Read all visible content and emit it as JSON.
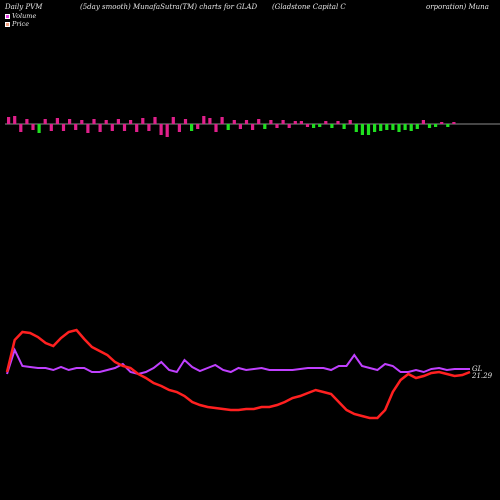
{
  "header": {
    "col1": "Daily PVM",
    "col2": "(5day smooth) MunafaSutra(TM) charts for GLAD",
    "col3": "(Gladstone   Capital C",
    "col4": "orporation) Muna"
  },
  "legend": [
    {
      "label": "Volume",
      "color": "#e040e0"
    },
    {
      "label": "Price",
      "color": "#f0a080"
    }
  ],
  "colors": {
    "up": "#e0208c",
    "down": "#20e020",
    "price": "#ff2020",
    "pvm": "#c040ff",
    "axis": "#bbbbbb"
  },
  "chart_data": {
    "type": "bar+line",
    "volume_bars": [
      {
        "v": 0.35,
        "c": "up"
      },
      {
        "v": 0.4,
        "c": "up"
      },
      {
        "v": -0.4,
        "c": "up"
      },
      {
        "v": 0.25,
        "c": "up"
      },
      {
        "v": -0.3,
        "c": "up"
      },
      {
        "v": -0.45,
        "c": "down"
      },
      {
        "v": 0.25,
        "c": "up"
      },
      {
        "v": -0.35,
        "c": "up"
      },
      {
        "v": 0.3,
        "c": "up"
      },
      {
        "v": -0.35,
        "c": "up"
      },
      {
        "v": 0.25,
        "c": "up"
      },
      {
        "v": -0.3,
        "c": "up"
      },
      {
        "v": 0.2,
        "c": "up"
      },
      {
        "v": -0.45,
        "c": "up"
      },
      {
        "v": 0.25,
        "c": "up"
      },
      {
        "v": -0.4,
        "c": "up"
      },
      {
        "v": 0.2,
        "c": "up"
      },
      {
        "v": -0.35,
        "c": "up"
      },
      {
        "v": 0.25,
        "c": "up"
      },
      {
        "v": -0.35,
        "c": "up"
      },
      {
        "v": 0.2,
        "c": "up"
      },
      {
        "v": -0.4,
        "c": "up"
      },
      {
        "v": 0.3,
        "c": "up"
      },
      {
        "v": -0.35,
        "c": "up"
      },
      {
        "v": 0.35,
        "c": "up"
      },
      {
        "v": -0.55,
        "c": "up"
      },
      {
        "v": -0.65,
        "c": "up"
      },
      {
        "v": 0.35,
        "c": "up"
      },
      {
        "v": -0.4,
        "c": "up"
      },
      {
        "v": 0.25,
        "c": "up"
      },
      {
        "v": -0.35,
        "c": "down"
      },
      {
        "v": -0.25,
        "c": "up"
      },
      {
        "v": 0.4,
        "c": "up"
      },
      {
        "v": 0.3,
        "c": "up"
      },
      {
        "v": -0.4,
        "c": "up"
      },
      {
        "v": 0.35,
        "c": "up"
      },
      {
        "v": -0.3,
        "c": "down"
      },
      {
        "v": 0.2,
        "c": "up"
      },
      {
        "v": -0.25,
        "c": "up"
      },
      {
        "v": 0.2,
        "c": "up"
      },
      {
        "v": -0.3,
        "c": "up"
      },
      {
        "v": 0.25,
        "c": "up"
      },
      {
        "v": -0.25,
        "c": "down"
      },
      {
        "v": 0.2,
        "c": "up"
      },
      {
        "v": -0.2,
        "c": "up"
      },
      {
        "v": 0.2,
        "c": "up"
      },
      {
        "v": -0.2,
        "c": "up"
      },
      {
        "v": 0.15,
        "c": "up"
      },
      {
        "v": 0.15,
        "c": "up"
      },
      {
        "v": -0.15,
        "c": "up"
      },
      {
        "v": -0.2,
        "c": "down"
      },
      {
        "v": -0.15,
        "c": "down"
      },
      {
        "v": 0.15,
        "c": "up"
      },
      {
        "v": -0.2,
        "c": "down"
      },
      {
        "v": 0.15,
        "c": "up"
      },
      {
        "v": -0.25,
        "c": "down"
      },
      {
        "v": 0.2,
        "c": "up"
      },
      {
        "v": -0.4,
        "c": "down"
      },
      {
        "v": -0.55,
        "c": "down"
      },
      {
        "v": -0.55,
        "c": "down"
      },
      {
        "v": -0.4,
        "c": "down"
      },
      {
        "v": -0.35,
        "c": "down"
      },
      {
        "v": -0.3,
        "c": "down"
      },
      {
        "v": -0.3,
        "c": "down"
      },
      {
        "v": -0.4,
        "c": "down"
      },
      {
        "v": -0.3,
        "c": "down"
      },
      {
        "v": -0.35,
        "c": "down"
      },
      {
        "v": -0.25,
        "c": "down"
      },
      {
        "v": 0.2,
        "c": "up"
      },
      {
        "v": -0.2,
        "c": "down"
      },
      {
        "v": -0.15,
        "c": "down"
      },
      {
        "v": 0.1,
        "c": "up"
      },
      {
        "v": -0.15,
        "c": "down"
      },
      {
        "v": 0.1,
        "c": "up"
      }
    ],
    "price": [
      372,
      340,
      332,
      333,
      337,
      343,
      346,
      338,
      332,
      330,
      339,
      347,
      351,
      355,
      362,
      366,
      368,
      374,
      378,
      383,
      386,
      390,
      392,
      396,
      402,
      405,
      407,
      408,
      409,
      410,
      410,
      409,
      409,
      407,
      407,
      405,
      402,
      398,
      396,
      393,
      390,
      392,
      394,
      402,
      410,
      414,
      416,
      418,
      418,
      410,
      392,
      380,
      374,
      378,
      376,
      373,
      372,
      374,
      376,
      375,
      372
    ],
    "pvm": [
      374,
      350,
      366,
      367,
      368,
      368,
      370,
      367,
      370,
      368,
      368,
      372,
      372,
      370,
      368,
      364,
      372,
      374,
      372,
      368,
      362,
      370,
      372,
      360,
      367,
      371,
      368,
      365,
      370,
      372,
      368,
      370,
      369,
      368,
      370,
      370,
      370,
      370,
      369,
      368,
      368,
      368,
      370,
      366,
      366,
      355,
      366,
      368,
      370,
      364,
      366,
      372,
      372,
      370,
      372,
      369,
      368,
      370,
      369,
      369,
      369
    ],
    "price_label": "21.29",
    "pvm_label": "GL"
  }
}
